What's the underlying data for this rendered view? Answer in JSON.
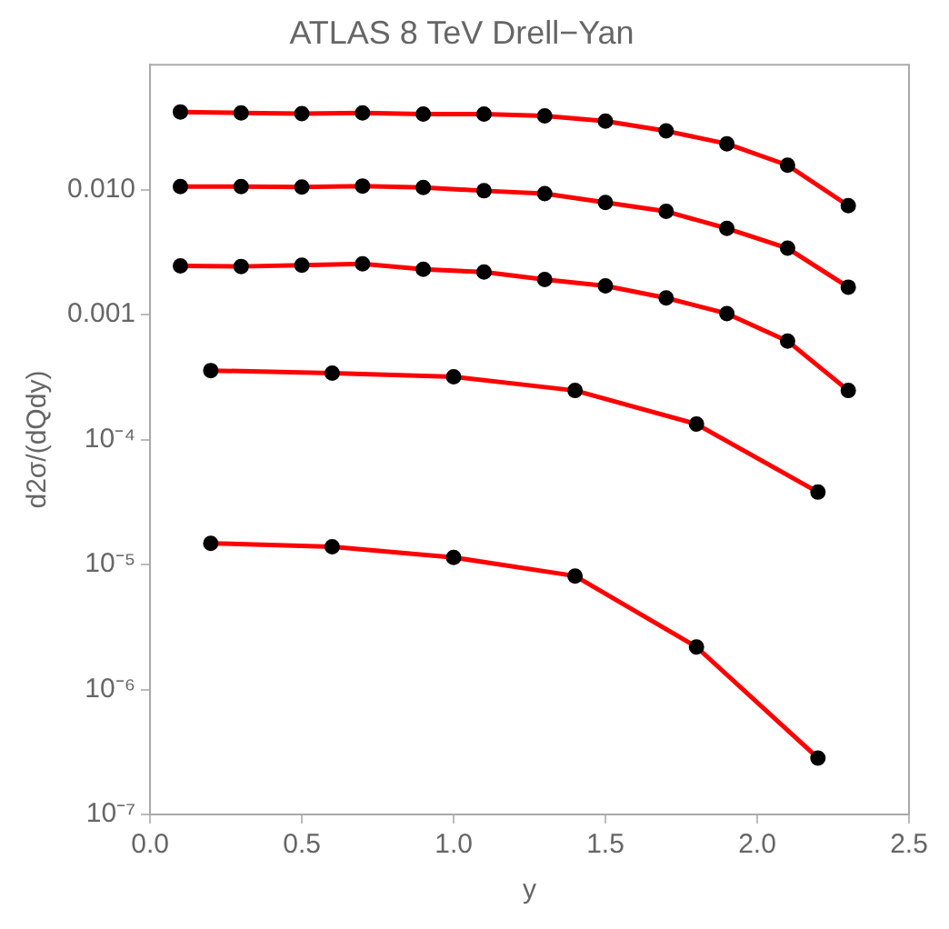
{
  "chart_data": {
    "type": "line",
    "title": "ATLAS 8 TeV Drell−Yan",
    "xlabel": "y",
    "ylabel": "d2σ/(dQdy)",
    "log": "y",
    "grid": false,
    "legend": false,
    "marker": "circle",
    "line_style": "solid",
    "xlim": [
      0,
      2.5
    ],
    "xticks": [
      {
        "value": 0,
        "label": "0.0"
      },
      0.5,
      {
        "value": 1,
        "label": "1.0"
      },
      1.5,
      {
        "value": 2,
        "label": "2.0"
      },
      2.5
    ],
    "ylim": [
      1e-07,
      0.1
    ],
    "yticks": [
      {
        "value": 1e-07,
        "label": "10⁻⁷"
      },
      {
        "value": 1e-06,
        "label": "10⁻⁶"
      },
      {
        "value": 1e-05,
        "label": "10⁻⁵"
      },
      {
        "value": 0.0001,
        "label": "10⁻⁴"
      },
      0.001,
      {
        "value": 0.01,
        "label": "0.010"
      }
    ],
    "series": [
      {
        "color": "#ff0000",
        "x": [
          0.1,
          0.3,
          0.5,
          0.7,
          0.9,
          1.1,
          1.3,
          1.5,
          1.7,
          1.9,
          2.1,
          2.3
        ],
        "values": [
          0.0419,
          0.0411,
          0.0406,
          0.0411,
          0.0402,
          0.0402,
          0.0389,
          0.0354,
          0.0295,
          0.0233,
          0.0157,
          0.00745
        ]
      },
      {
        "color": "#ff0000",
        "x": [
          0.1,
          0.3,
          0.5,
          0.7,
          0.9,
          1.1,
          1.3,
          1.5,
          1.7,
          1.9,
          2.1,
          2.3
        ],
        "values": [
          0.0106,
          0.0106,
          0.0105,
          0.0107,
          0.0104,
          0.0098,
          0.0093,
          0.0079,
          0.0067,
          0.0049,
          0.0034,
          0.00166
        ]
      },
      {
        "color": "#ff0000",
        "x": [
          0.1,
          0.3,
          0.5,
          0.7,
          0.9,
          1.1,
          1.3,
          1.5,
          1.7,
          1.9,
          2.1,
          2.3
        ],
        "values": [
          0.00246,
          0.00243,
          0.00249,
          0.00255,
          0.00231,
          0.00219,
          0.00191,
          0.0017,
          0.00136,
          0.00102,
          0.000615,
          0.000247
        ]
      },
      {
        "color": "#ff0000",
        "x": [
          0.2,
          0.6,
          1.0,
          1.4,
          1.8,
          2.2
        ],
        "values": [
          0.000357,
          0.00034,
          0.000318,
          0.000247,
          0.000133,
          3.8e-05
        ]
      },
      {
        "color": "#ff0000",
        "x": [
          0.2,
          0.6,
          1.0,
          1.4,
          1.8,
          2.2
        ],
        "values": [
          1.48e-05,
          1.39e-05,
          1.14e-05,
          8.1e-06,
          2.19e-06,
          2.83e-07
        ]
      }
    ]
  }
}
